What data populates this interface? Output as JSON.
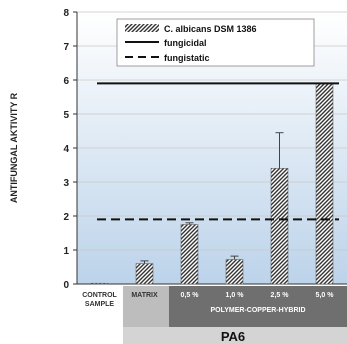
{
  "chart_data": {
    "type": "bar",
    "ylabel": "ANTIFUNGAL AKTIVITY R",
    "ylim": [
      0,
      8
    ],
    "yticks": [
      "0",
      "1",
      "2",
      "3",
      "4",
      "5",
      "6",
      "7",
      "8"
    ],
    "grid": true,
    "legend_position": "top-right",
    "categories": [
      "CONTROL SAMPLE",
      "MATRIX",
      "0,5 %",
      "1,0 %",
      "2,5 %",
      "5,0 %"
    ],
    "series": [
      {
        "name": "C. albicans DSM 1386",
        "values": [
          0.02,
          0.6,
          1.75,
          0.72,
          3.4,
          5.9
        ],
        "errors": [
          0,
          0.08,
          0.05,
          0.1,
          1.05,
          0
        ]
      }
    ],
    "reference_lines": [
      {
        "name": "fungicidal",
        "value": 5.9,
        "style": "solid"
      },
      {
        "name": "fungistatic",
        "value": 1.9,
        "style": "dashed"
      }
    ],
    "group_label": "POLYMER-COPPER-HYBRID",
    "base_label": "PA6",
    "colors": {
      "bar_hatch": "#444444",
      "plot_bg_top": "#ffffff",
      "plot_bg_bottom": "#bcd3ea",
      "group_band": "#6f6f6f",
      "matrix_band": "#bdbdbd",
      "base_band": "#d4d4d4"
    }
  }
}
